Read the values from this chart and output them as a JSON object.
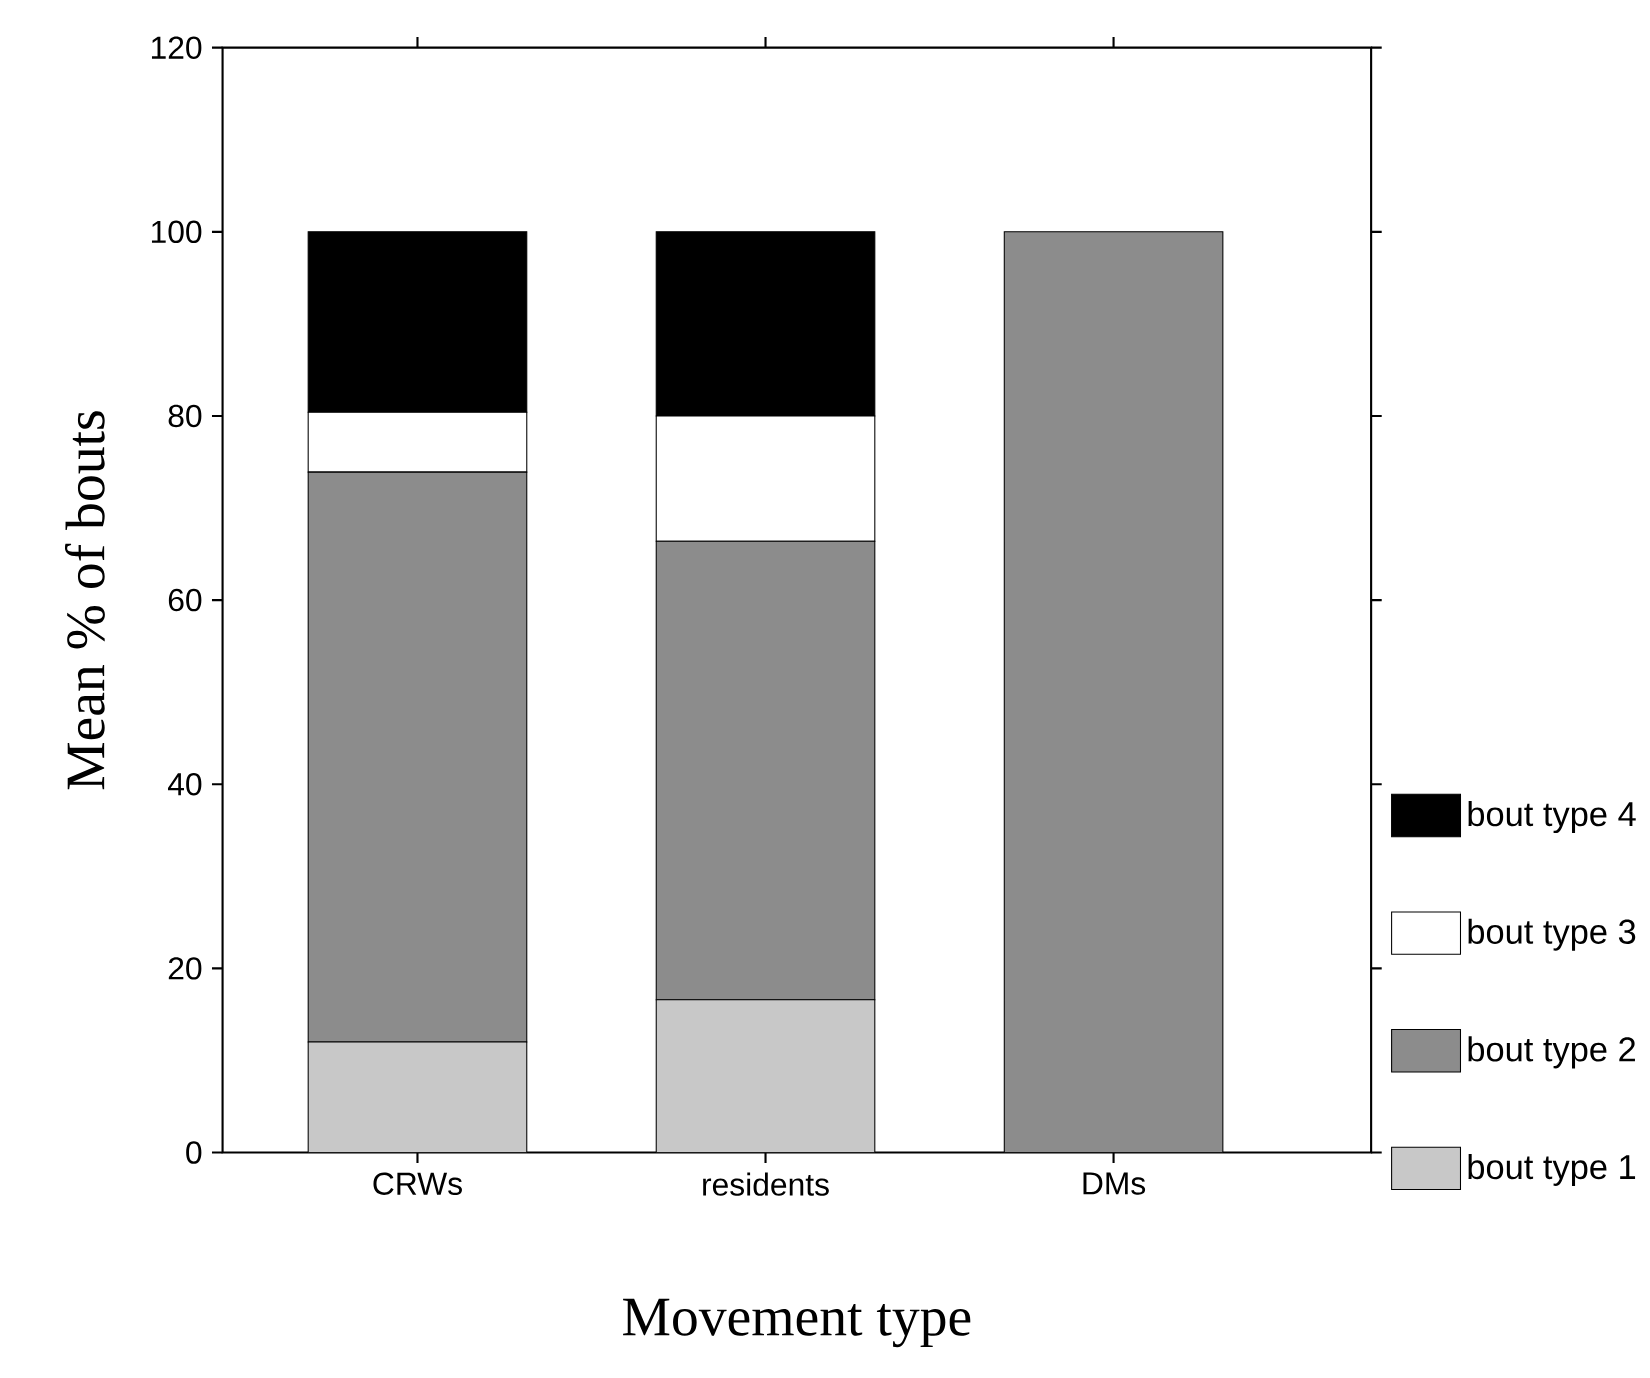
{
  "chart_data": {
    "type": "bar",
    "stacked": true,
    "xlabel": "Movement type",
    "ylabel": "Mean % of bouts",
    "categories": [
      "CRWs",
      "residents",
      "DMs"
    ],
    "series": [
      {
        "name": "bout type 1",
        "color": "#c8c8c8",
        "values": [
          12.0,
          16.6,
          0
        ]
      },
      {
        "name": "bout type 2",
        "color": "#8c8c8c",
        "values": [
          61.9,
          49.8,
          100
        ]
      },
      {
        "name": "bout type 3",
        "color": "#ffffff",
        "values": [
          6.5,
          13.6,
          0
        ]
      },
      {
        "name": "bout type 4",
        "color": "#000000",
        "values": [
          19.6,
          20.0,
          0
        ]
      }
    ],
    "ylim": [
      0,
      120
    ],
    "yticks": [
      0,
      20,
      40,
      60,
      80,
      100,
      120
    ],
    "grid": false,
    "legend": "right"
  }
}
